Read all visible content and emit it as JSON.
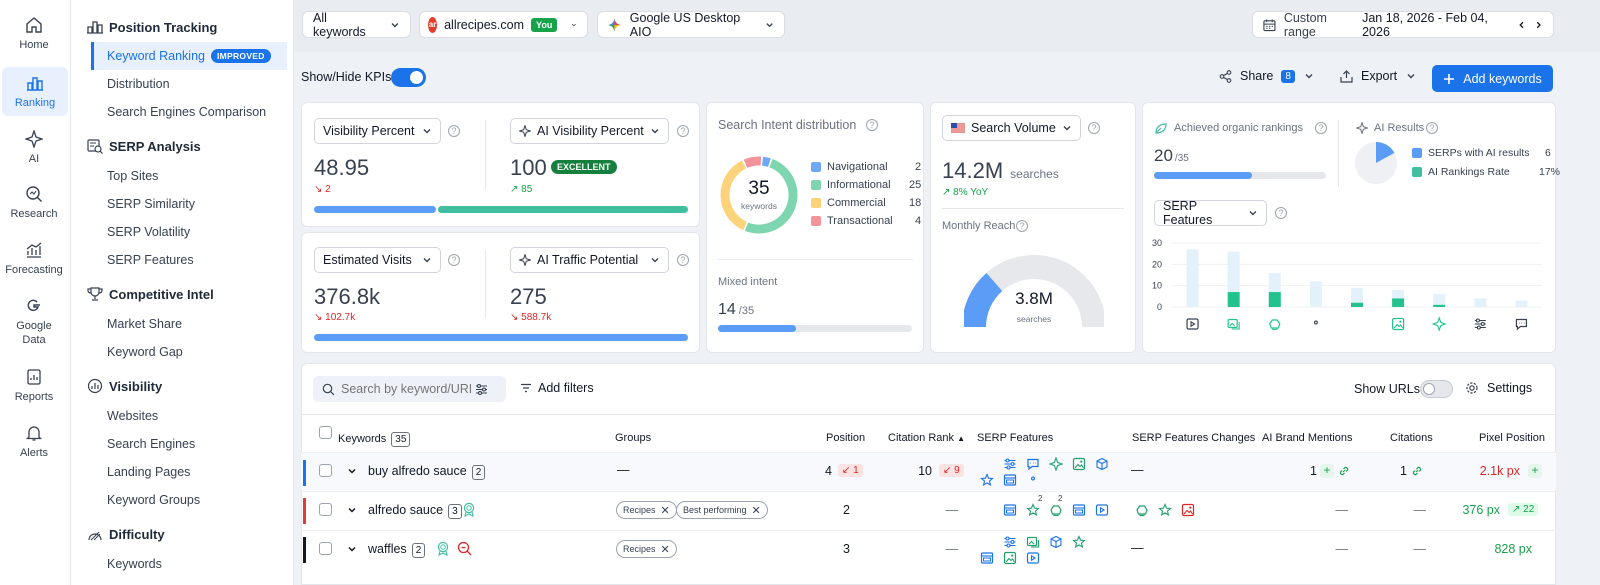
{
  "rail": {
    "items": [
      {
        "label": "Home",
        "icon": "home-icon"
      },
      {
        "label": "Ranking",
        "icon": "ranking-icon"
      },
      {
        "label": "AI",
        "icon": "ai-sparkle-icon"
      },
      {
        "label": "Research",
        "icon": "research-icon"
      },
      {
        "label": "Forecasting",
        "icon": "forecasting-icon"
      },
      {
        "label": "Google Data",
        "icon": "google-icon"
      },
      {
        "label": "Reports",
        "icon": "reports-icon"
      },
      {
        "label": "Alerts",
        "icon": "bell-icon"
      }
    ]
  },
  "nav": {
    "sections": [
      {
        "title": "Position Tracking",
        "items": [
          "Keyword Ranking",
          "Distribution",
          "Search Engines Comparison"
        ]
      },
      {
        "title": "SERP Analysis",
        "items": [
          "Top Sites",
          "SERP Similarity",
          "SERP Volatility",
          "SERP Features"
        ]
      },
      {
        "title": "Competitive Intel",
        "items": [
          "Market Share",
          "Keyword Gap"
        ]
      },
      {
        "title": "Visibility",
        "items": [
          "Websites",
          "Search Engines",
          "Landing Pages",
          "Keyword Groups"
        ]
      },
      {
        "title": "Difficulty",
        "items": [
          "Keywords"
        ]
      }
    ],
    "improved_badge": "IMPROVED"
  },
  "topbar": {
    "keywords_filter": "All keywords",
    "site": "allrecipes.com",
    "site_badge": "You",
    "engine": "Google US Desktop AIO",
    "range_label": "Custom range",
    "range_value": "Jan 18, 2026 - Feb 04, 2026"
  },
  "toolbar": {
    "kpi_toggle": "Show/Hide KPIs",
    "share": "Share",
    "share_count": "8",
    "export": "Export",
    "add_keywords": "Add keywords"
  },
  "kpi": {
    "visibility": {
      "label": "Visibility Percent",
      "value": "48.95",
      "change": "2"
    },
    "ai_visibility": {
      "label": "AI Visibility Percent",
      "value": "100",
      "badge": "EXCELLENT",
      "change": "85"
    },
    "visits": {
      "label": "Estimated Visits",
      "value": "376.8k",
      "change": "102.7k"
    },
    "ai_traffic": {
      "label": "AI Traffic Potential",
      "value": "275",
      "change": "588.7k"
    }
  },
  "intent": {
    "title": "Search Intent distribution",
    "total": "35",
    "total_label": "keywords",
    "items": [
      {
        "name": "Navigational",
        "value": "2",
        "color": "#6ea8f7"
      },
      {
        "name": "Informational",
        "value": "25",
        "color": "#7ed6b0"
      },
      {
        "name": "Commercial",
        "value": "18",
        "color": "#fcd27a"
      },
      {
        "name": "Transactional",
        "value": "4",
        "color": "#f4939a"
      }
    ],
    "mixed_label": "Mixed intent",
    "mixed_value": "14",
    "mixed_total": "/35",
    "mixed_fraction": 0.4
  },
  "volume": {
    "label": "Search Volume",
    "value": "14.2M",
    "unit": "searches",
    "yoy": "8% YoY",
    "reach_label": "Monthly Reach",
    "reach_value": "3.8M",
    "reach_unit": "searches",
    "reach_fraction": 0.27
  },
  "organic": {
    "label": "Achieved organic rankings",
    "value": "20",
    "total": "/35",
    "fraction": 0.57,
    "ai_label": "AI Results",
    "ai_items": [
      {
        "name": "SERPs with AI results",
        "value": "6",
        "color": "#5b9cf6"
      },
      {
        "name": "AI Rankings Rate",
        "value": "17%",
        "color": "#3fbf9f"
      }
    ],
    "serp_select": "SERP Features"
  },
  "chart_data": {
    "type": "bar",
    "categories": [
      "video",
      "images",
      "reviews",
      "local",
      "knowledge",
      "image-pack",
      "ai-overview",
      "filters",
      "discussions"
    ],
    "series": [
      {
        "name": "total",
        "values": [
          27,
          26,
          16,
          12,
          9,
          8,
          6,
          4,
          3
        ]
      },
      {
        "name": "owned",
        "values": [
          0,
          7,
          7,
          0,
          2,
          4,
          1,
          0,
          0
        ]
      }
    ],
    "yticks": [
      "30",
      "20",
      "10",
      "0"
    ],
    "ylim": [
      0,
      30
    ]
  },
  "table": {
    "search_placeholder": "Search by keyword/URL",
    "add_filters": "Add filters",
    "show_urls": "Show URLs",
    "settings": "Settings",
    "headers": {
      "keywords": "Keywords",
      "keywords_count": "35",
      "groups": "Groups",
      "position": "Position",
      "citation_rank": "Citation Rank",
      "serp_features": "SERP Features",
      "serp_changes": "SERP Features Changes",
      "ai_mentions": "AI Brand Mentions",
      "citations": "Citations",
      "pixel": "Pixel Position"
    },
    "rows": [
      {
        "keyword": "buy alfredo sauce",
        "count": "2",
        "groups_empty": "—",
        "position": "4",
        "pos_change": "1",
        "citation": "10",
        "cit_change": "9",
        "changes": "—",
        "mentions": "1",
        "citations": "1",
        "pixel": "2.1k px"
      },
      {
        "keyword": "alfredo sauce",
        "count": "3",
        "tag1": "Recipes",
        "tag2": "Best performing",
        "position": "2",
        "citation": "—",
        "mentions": "—",
        "citations": "—",
        "pixel": "376 px",
        "pixel_change": "22",
        "sup1": "2",
        "sup2": "2"
      },
      {
        "keyword": "waffles",
        "count": "2",
        "tag1": "Recipes",
        "position": "3",
        "citation": "—",
        "changes": "—",
        "mentions": "—",
        "citations": "—",
        "pixel": "828 px"
      }
    ]
  }
}
